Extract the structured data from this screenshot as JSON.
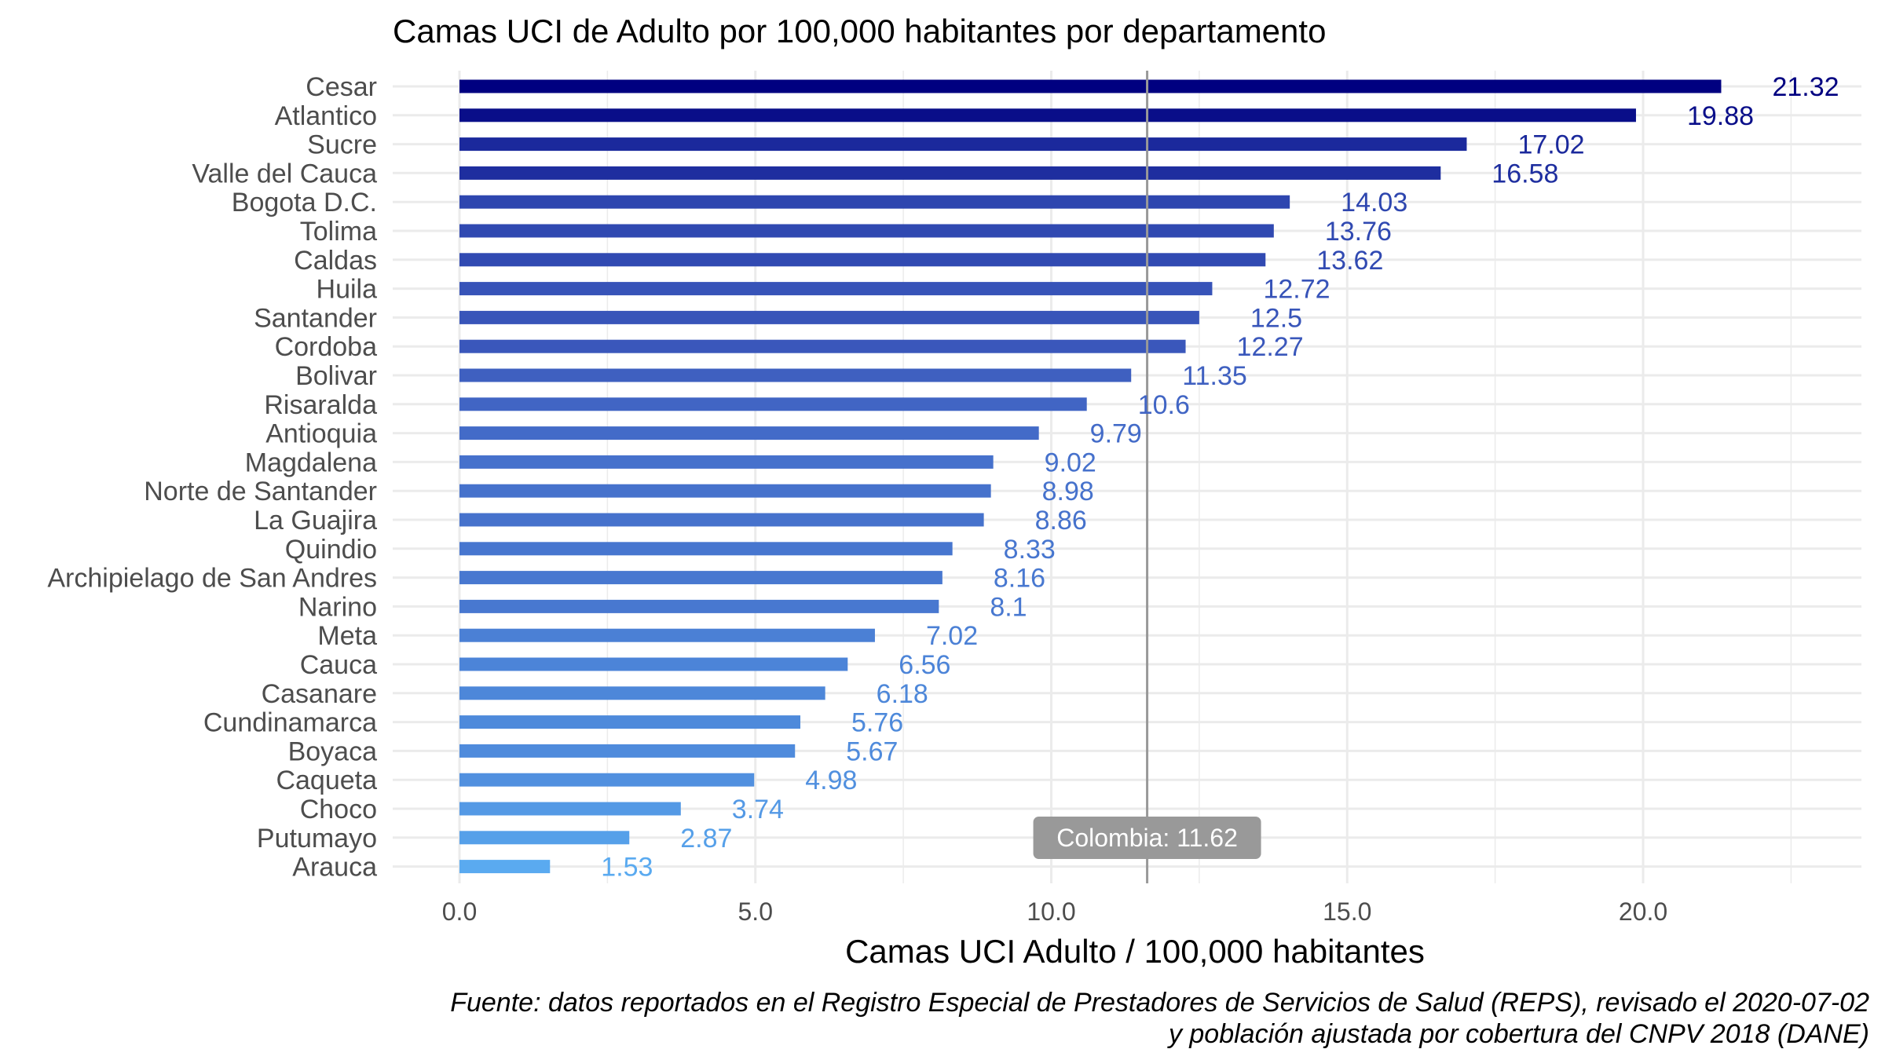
{
  "chart_data": {
    "type": "bar",
    "orientation": "horizontal",
    "title": "Camas UCI de Adulto por 100,000 habitantes por departamento",
    "xlabel": "Camas UCI Adulto / 100,000 habitantes",
    "ylabel": "",
    "xlim": [
      0,
      23
    ],
    "ticks": [
      0,
      5,
      10,
      15,
      20
    ],
    "tick_labels": [
      "0.0",
      "5.0",
      "10.0",
      "15.0",
      "20.0"
    ],
    "grid": true,
    "categories": [
      "Cesar",
      "Atlantico",
      "Sucre",
      "Valle del Cauca",
      "Bogota D.C.",
      "Tolima",
      "Caldas",
      "Huila",
      "Santander",
      "Cordoba",
      "Bolivar",
      "Risaralda",
      "Antioquia",
      "Magdalena",
      "Norte de Santander",
      "La Guajira",
      "Quindio",
      "Archipielago de San Andres",
      "Narino",
      "Meta",
      "Cauca",
      "Casanare",
      "Cundinamarca",
      "Boyaca",
      "Caqueta",
      "Choco",
      "Putumayo",
      "Arauca"
    ],
    "values": [
      21.32,
      19.88,
      17.02,
      16.58,
      14.03,
      13.76,
      13.62,
      12.72,
      12.5,
      12.27,
      11.35,
      10.6,
      9.79,
      9.02,
      8.98,
      8.86,
      8.33,
      8.16,
      8.1,
      7.02,
      6.56,
      6.18,
      5.76,
      5.67,
      4.98,
      3.74,
      2.87,
      1.53
    ],
    "value_labels": [
      "21.32",
      "19.88",
      "17.02",
      "16.58",
      "14.03",
      "13.76",
      "13.62",
      "12.72",
      "12.5",
      "12.27",
      "11.35",
      "10.6",
      "9.79",
      "9.02",
      "8.98",
      "8.86",
      "8.33",
      "8.16",
      "8.1",
      "7.02",
      "6.56",
      "6.18",
      "5.76",
      "5.67",
      "4.98",
      "3.74",
      "2.87",
      "1.53"
    ],
    "color_scale": {
      "low": "#5aaaf0",
      "mid": "#3f5fc0",
      "high": "#000080"
    },
    "reference_line": {
      "value": 11.62,
      "label": "Colombia: 11.62",
      "color": "#999999"
    },
    "caption": [
      "Fuente: datos reportados en el Registro Especial de Prestadores de Servicios de Salud (REPS), revisado el 2020-07-02",
      "y población ajustada por cobertura del CNPV 2018 (DANE)"
    ]
  }
}
